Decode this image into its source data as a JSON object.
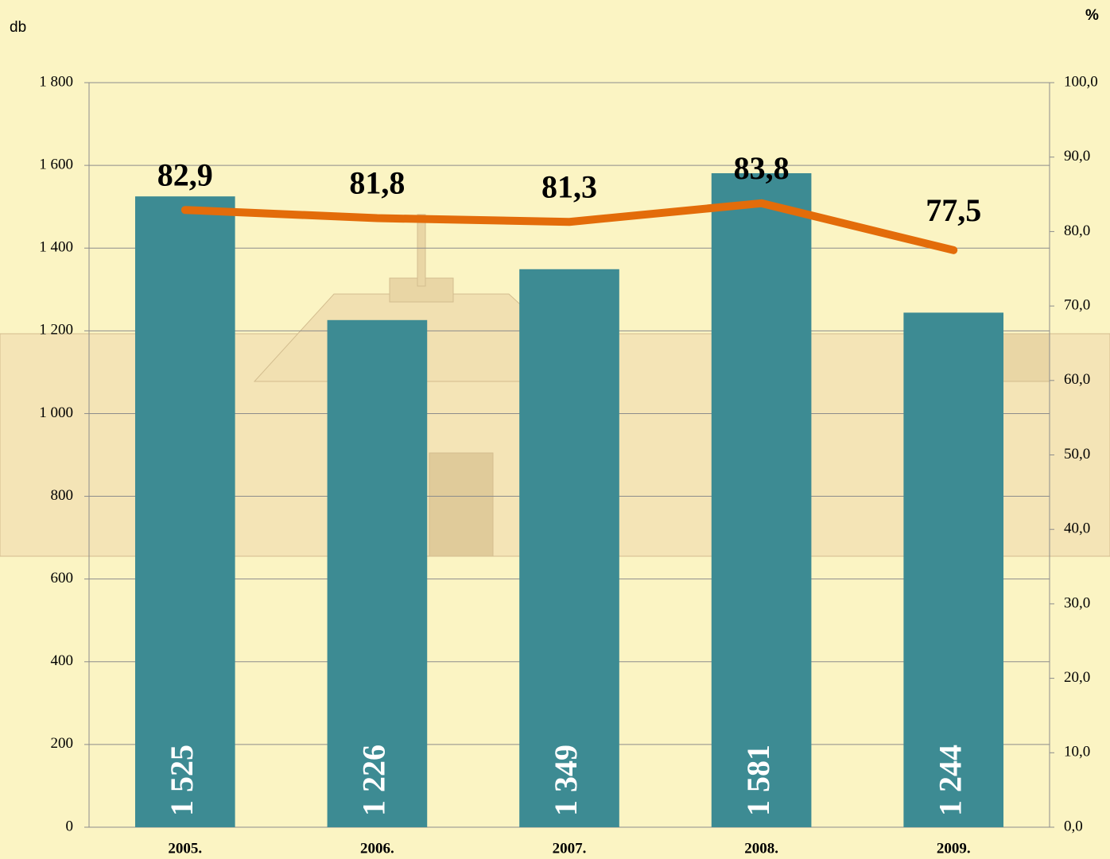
{
  "chart_data": {
    "type": "combo",
    "y_label": "db",
    "y2_label": "%",
    "categories": [
      "2005.",
      "2006.",
      "2007.",
      "2008.",
      "2009."
    ],
    "series": [
      {
        "type": "bar",
        "color": "#3d8b93",
        "values": [
          1525,
          1226,
          1349,
          1581,
          1244
        ],
        "value_labels": [
          "1 525",
          "1 226",
          "1 349",
          "1 581",
          "1 244"
        ]
      },
      {
        "type": "line",
        "axis": "y2",
        "color": "#e36c0a",
        "values": [
          82.9,
          81.8,
          81.3,
          83.8,
          77.5
        ],
        "value_labels": [
          "82,9",
          "81,8",
          "81,3",
          "83,8",
          "77,5"
        ]
      }
    ],
    "ylim": [
      0,
      1800
    ],
    "yticks": [
      0,
      200,
      400,
      600,
      800,
      {
        "value": 1000,
        "label": "1 000"
      },
      {
        "value": 1200,
        "label": "1 200"
      },
      {
        "value": 1400,
        "label": "1 400"
      },
      {
        "value": 1600,
        "label": "1 600"
      },
      {
        "value": 1800,
        "label": "1 800"
      }
    ],
    "y2lim": [
      0,
      100
    ],
    "y2ticks": [
      {
        "value": 0,
        "label": "0,0"
      },
      {
        "value": 10,
        "label": "10,0"
      },
      {
        "value": 20,
        "label": "20,0"
      },
      {
        "value": 30,
        "label": "30,0"
      },
      {
        "value": 40,
        "label": "40,0"
      },
      {
        "value": 50,
        "label": "50,0"
      },
      {
        "value": 60,
        "label": "60,0"
      },
      {
        "value": 70,
        "label": "70,0"
      },
      {
        "value": 80,
        "label": "80,0"
      },
      {
        "value": 90,
        "label": "90,0"
      },
      {
        "value": 100,
        "label": "100,0"
      }
    ],
    "grid": true
  }
}
